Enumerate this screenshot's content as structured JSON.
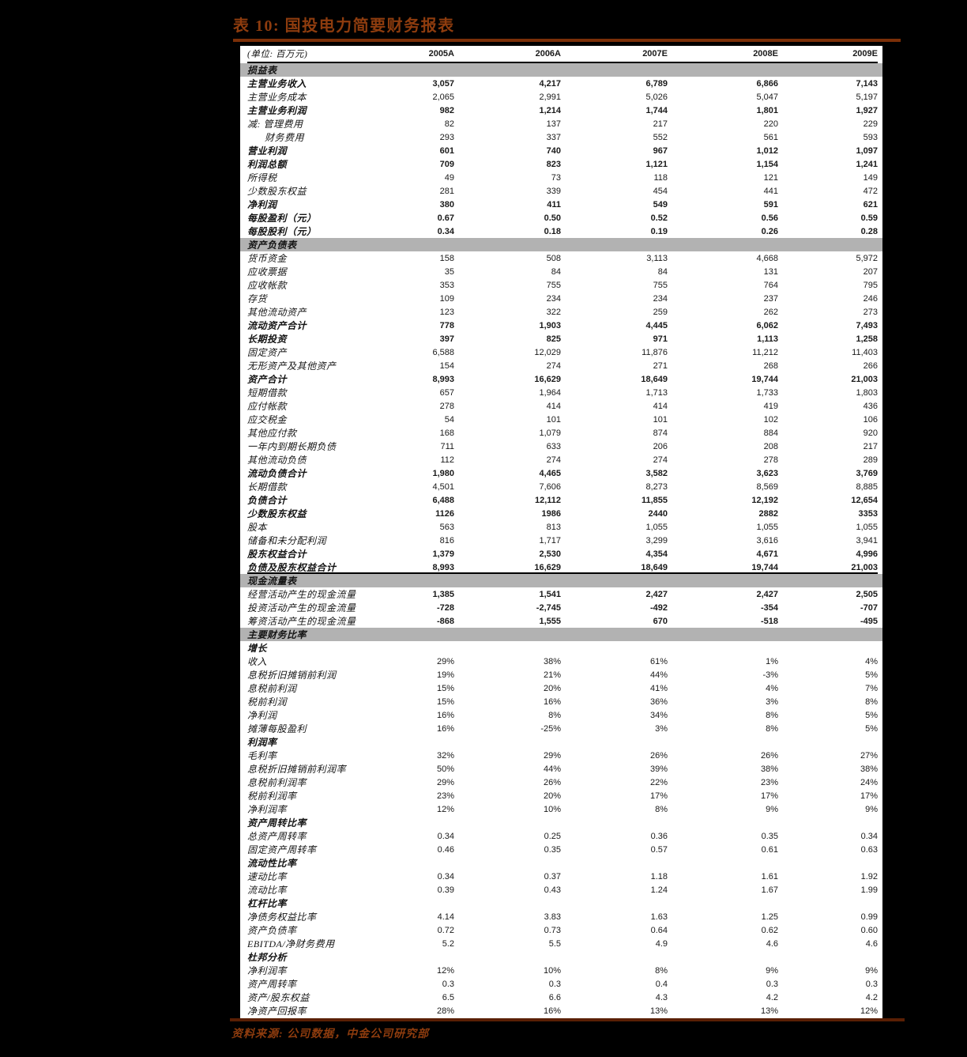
{
  "page": {
    "title": "表 10:  国投电力简要财务报表",
    "source_note": "资料来源: 公司数据，中金公司研究部",
    "colors": {
      "page_background": "#000000",
      "table_background": "#ffffff",
      "section_band": "#b2b2b2",
      "accent_rust": "#8e3c0e",
      "title_rule": "#7b2f08",
      "bottom_rule": "#5a1f04"
    }
  },
  "table": {
    "unit_label": "(单位: 百万元)",
    "columns": [
      "2005A",
      "2006A",
      "2007E",
      "2008E",
      "2009E"
    ],
    "rows": [
      {
        "kind": "section",
        "label": "损益表"
      },
      {
        "kind": "data",
        "label": "主营业务收入",
        "values": [
          "3,057",
          "4,217",
          "6,789",
          "6,866",
          "7,143"
        ],
        "bold_label": true,
        "bold_values": true
      },
      {
        "kind": "data",
        "label": "主营业务成本",
        "values": [
          "2,065",
          "2,991",
          "5,026",
          "5,047",
          "5,197"
        ]
      },
      {
        "kind": "data",
        "label": "主营业务利润",
        "values": [
          "982",
          "1,214",
          "1,744",
          "1,801",
          "1,927"
        ],
        "bold_label": true,
        "bold_values": true
      },
      {
        "kind": "data",
        "label": "减: 管理费用",
        "values": [
          "82",
          "137",
          "217",
          "220",
          "229"
        ]
      },
      {
        "kind": "data",
        "label": "财务费用",
        "values": [
          "293",
          "337",
          "552",
          "561",
          "593"
        ],
        "indent": true
      },
      {
        "kind": "data",
        "label": "营业利润",
        "values": [
          "601",
          "740",
          "967",
          "1,012",
          "1,097"
        ],
        "bold_label": true,
        "bold_values": true
      },
      {
        "kind": "data",
        "label": "利润总额",
        "values": [
          "709",
          "823",
          "1,121",
          "1,154",
          "1,241"
        ],
        "bold_label": true,
        "bold_values": true
      },
      {
        "kind": "data",
        "label": "所得税",
        "values": [
          "49",
          "73",
          "118",
          "121",
          "149"
        ]
      },
      {
        "kind": "data",
        "label": "少数股东权益",
        "values": [
          "281",
          "339",
          "454",
          "441",
          "472"
        ]
      },
      {
        "kind": "data",
        "label": "净利润",
        "values": [
          "380",
          "411",
          "549",
          "591",
          "621"
        ],
        "bold_label": true,
        "bold_values": true
      },
      {
        "kind": "data",
        "label": "每股盈利（元）",
        "values": [
          "0.67",
          "0.50",
          "0.52",
          "0.56",
          "0.59"
        ],
        "bold_label": true,
        "bold_values": true
      },
      {
        "kind": "data",
        "label": "每股股利（元）",
        "values": [
          "0.34",
          "0.18",
          "0.19",
          "0.26",
          "0.28"
        ],
        "bold_label": true,
        "bold_values": true
      },
      {
        "kind": "section",
        "label": "资产负债表"
      },
      {
        "kind": "data",
        "label": "货币资金",
        "values": [
          "158",
          "508",
          "3,113",
          "4,668",
          "5,972"
        ]
      },
      {
        "kind": "data",
        "label": "应收票据",
        "values": [
          "35",
          "84",
          "84",
          "131",
          "207"
        ]
      },
      {
        "kind": "data",
        "label": "应收帐款",
        "values": [
          "353",
          "755",
          "755",
          "764",
          "795"
        ]
      },
      {
        "kind": "data",
        "label": "存货",
        "values": [
          "109",
          "234",
          "234",
          "237",
          "246"
        ]
      },
      {
        "kind": "data",
        "label": "其他流动资产",
        "values": [
          "123",
          "322",
          "259",
          "262",
          "273"
        ]
      },
      {
        "kind": "data",
        "label": "流动资产合计",
        "values": [
          "778",
          "1,903",
          "4,445",
          "6,062",
          "7,493"
        ],
        "bold_label": true,
        "bold_values": true
      },
      {
        "kind": "data",
        "label": "长期投资",
        "values": [
          "397",
          "825",
          "971",
          "1,113",
          "1,258"
        ],
        "bold_label": true,
        "bold_values": true
      },
      {
        "kind": "data",
        "label": "固定资产",
        "values": [
          "6,588",
          "12,029",
          "11,876",
          "11,212",
          "11,403"
        ]
      },
      {
        "kind": "data",
        "label": "无形资产及其他资产",
        "values": [
          "154",
          "274",
          "271",
          "268",
          "266"
        ]
      },
      {
        "kind": "data",
        "label": "资产合计",
        "values": [
          "8,993",
          "16,629",
          "18,649",
          "19,744",
          "21,003"
        ],
        "bold_label": true,
        "bold_values": true
      },
      {
        "kind": "data",
        "label": "短期借款",
        "values": [
          "657",
          "1,964",
          "1,713",
          "1,733",
          "1,803"
        ]
      },
      {
        "kind": "data",
        "label": "应付帐款",
        "values": [
          "278",
          "414",
          "414",
          "419",
          "436"
        ]
      },
      {
        "kind": "data",
        "label": "应交税金",
        "values": [
          "54",
          "101",
          "101",
          "102",
          "106"
        ]
      },
      {
        "kind": "data",
        "label": "其他应付款",
        "values": [
          "168",
          "1,079",
          "874",
          "884",
          "920"
        ]
      },
      {
        "kind": "data",
        "label": "一年内到期长期负债",
        "values": [
          "711",
          "633",
          "206",
          "208",
          "217"
        ]
      },
      {
        "kind": "data",
        "label": "其他流动负债",
        "values": [
          "112",
          "274",
          "274",
          "278",
          "289"
        ]
      },
      {
        "kind": "data",
        "label": "流动负债合计",
        "values": [
          "1,980",
          "4,465",
          "3,582",
          "3,623",
          "3,769"
        ],
        "bold_label": true,
        "bold_values": true
      },
      {
        "kind": "data",
        "label": "长期借款",
        "values": [
          "4,501",
          "7,606",
          "8,273",
          "8,569",
          "8,885"
        ]
      },
      {
        "kind": "data",
        "label": "负债合计",
        "values": [
          "6,488",
          "12,112",
          "11,855",
          "12,192",
          "12,654"
        ],
        "bold_label": true,
        "bold_values": true
      },
      {
        "kind": "data",
        "label": "少数股东权益",
        "values": [
          "1126",
          "1986",
          "2440",
          "2882",
          "3353"
        ],
        "bold_label": true,
        "bold_values": true
      },
      {
        "kind": "data",
        "label": "股本",
        "values": [
          "563",
          "813",
          "1,055",
          "1,055",
          "1,055"
        ]
      },
      {
        "kind": "data",
        "label": "储备和未分配利润",
        "values": [
          "816",
          "1,717",
          "3,299",
          "3,616",
          "3,941"
        ]
      },
      {
        "kind": "data",
        "label": "股东权益合计",
        "values": [
          "1,379",
          "2,530",
          "4,354",
          "4,671",
          "4,996"
        ],
        "bold_label": true,
        "bold_values": true
      },
      {
        "kind": "data",
        "label": "负债及股东权益合计",
        "values": [
          "8,993",
          "16,629",
          "18,649",
          "19,744",
          "21,003"
        ],
        "bold_label": true,
        "bold_values": true,
        "hr": true
      },
      {
        "kind": "section",
        "label": "现金流量表"
      },
      {
        "kind": "data",
        "label": "经营活动产生的现金流量",
        "values": [
          "1,385",
          "1,541",
          "2,427",
          "2,427",
          "2,505"
        ],
        "bold_values": true
      },
      {
        "kind": "data",
        "label": "投资活动产生的现金流量",
        "values": [
          "-728",
          "-2,745",
          "-492",
          "-354",
          "-707"
        ],
        "bold_values": true
      },
      {
        "kind": "data",
        "label": "筹资活动产生的现金流量",
        "values": [
          "-868",
          "1,555",
          "670",
          "-518",
          "-495"
        ],
        "bold_values": true
      },
      {
        "kind": "section",
        "label": "主要财务比率"
      },
      {
        "kind": "subhead",
        "label": "增长"
      },
      {
        "kind": "data",
        "label": "收入",
        "values": [
          "29%",
          "38%",
          "61%",
          "1%",
          "4%"
        ]
      },
      {
        "kind": "data",
        "label": "息税折旧摊销前利润",
        "values": [
          "19%",
          "21%",
          "44%",
          "-3%",
          "5%"
        ]
      },
      {
        "kind": "data",
        "label": "息税前利润",
        "values": [
          "15%",
          "20%",
          "41%",
          "4%",
          "7%"
        ]
      },
      {
        "kind": "data",
        "label": "税前利润",
        "values": [
          "15%",
          "16%",
          "36%",
          "3%",
          "8%"
        ]
      },
      {
        "kind": "data",
        "label": "净利润",
        "values": [
          "16%",
          "8%",
          "34%",
          "8%",
          "5%"
        ]
      },
      {
        "kind": "data",
        "label": "摊薄每股盈利",
        "values": [
          "16%",
          "-25%",
          "3%",
          "8%",
          "5%"
        ]
      },
      {
        "kind": "subhead",
        "label": "利润率"
      },
      {
        "kind": "data",
        "label": "毛利率",
        "values": [
          "32%",
          "29%",
          "26%",
          "26%",
          "27%"
        ]
      },
      {
        "kind": "data",
        "label": "息税折旧摊销前利润率",
        "values": [
          "50%",
          "44%",
          "39%",
          "38%",
          "38%"
        ]
      },
      {
        "kind": "data",
        "label": "息税前利润率",
        "values": [
          "29%",
          "26%",
          "22%",
          "23%",
          "24%"
        ]
      },
      {
        "kind": "data",
        "label": "税前利润率",
        "values": [
          "23%",
          "20%",
          "17%",
          "17%",
          "17%"
        ]
      },
      {
        "kind": "data",
        "label": "净利润率",
        "values": [
          "12%",
          "10%",
          "8%",
          "9%",
          "9%"
        ]
      },
      {
        "kind": "subhead",
        "label": "资产周转比率"
      },
      {
        "kind": "data",
        "label": "总资产周转率",
        "values": [
          "0.34",
          "0.25",
          "0.36",
          "0.35",
          "0.34"
        ]
      },
      {
        "kind": "data",
        "label": "固定资产周转率",
        "values": [
          "0.46",
          "0.35",
          "0.57",
          "0.61",
          "0.63"
        ]
      },
      {
        "kind": "subhead",
        "label": "流动性比率"
      },
      {
        "kind": "data",
        "label": "速动比率",
        "values": [
          "0.34",
          "0.37",
          "1.18",
          "1.61",
          "1.92"
        ]
      },
      {
        "kind": "data",
        "label": "流动比率",
        "values": [
          "0.39",
          "0.43",
          "1.24",
          "1.67",
          "1.99"
        ]
      },
      {
        "kind": "subhead",
        "label": "杠杆比率"
      },
      {
        "kind": "data",
        "label": "净债务权益比率",
        "values": [
          "4.14",
          "3.83",
          "1.63",
          "1.25",
          "0.99"
        ]
      },
      {
        "kind": "data",
        "label": "资产负债率",
        "values": [
          "0.72",
          "0.73",
          "0.64",
          "0.62",
          "0.60"
        ]
      },
      {
        "kind": "data",
        "label": "EBITDA/净财务费用",
        "values": [
          "5.2",
          "5.5",
          "4.9",
          "4.6",
          "4.6"
        ]
      },
      {
        "kind": "subhead",
        "label": "杜邦分析"
      },
      {
        "kind": "data",
        "label": "净利润率",
        "values": [
          "12%",
          "10%",
          "8%",
          "9%",
          "9%"
        ]
      },
      {
        "kind": "data",
        "label": "资产周转率",
        "values": [
          "0.3",
          "0.3",
          "0.4",
          "0.3",
          "0.3"
        ]
      },
      {
        "kind": "data",
        "label": "资产/股东权益",
        "values": [
          "6.5",
          "6.6",
          "4.3",
          "4.2",
          "4.2"
        ]
      },
      {
        "kind": "data",
        "label": "净资产回报率",
        "values": [
          "28%",
          "16%",
          "13%",
          "13%",
          "12%"
        ]
      }
    ]
  }
}
